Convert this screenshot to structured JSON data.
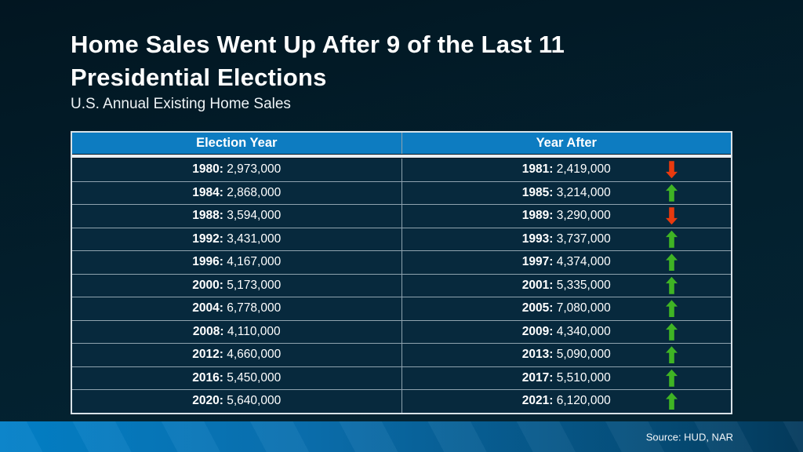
{
  "page": {
    "title_line1": "Home Sales Went Up After 9 of the Last 11",
    "title_line2": "Presidential Elections",
    "subtitle": "U.S. Annual Existing Home Sales",
    "source": "Source: HUD, NAR"
  },
  "colors": {
    "background_top": "#021621",
    "background_bottom": "#042534",
    "header_blue": "#0d7cc1",
    "row_bg": "#07293d",
    "row_border": "#8fa3af",
    "outer_border": "#d8e2e8",
    "separator_white": "#e8eef2",
    "up_green": "#3fb424",
    "down_red": "#e83a0e",
    "footer_blue_left": "#0280c8",
    "footer_blue_right": "#043a5c"
  },
  "chart_data": {
    "type": "table",
    "title": "Home Sales Went Up After 9 of the Last 11 Presidential Elections",
    "subtitle": "U.S. Annual Existing Home Sales",
    "columns": [
      "Election Year",
      "Year After"
    ],
    "rows": [
      {
        "election_year": "1980",
        "election_year_sales": "2,973,000",
        "year_after": "1981",
        "year_after_sales": "2,419,000",
        "direction": "down"
      },
      {
        "election_year": "1984",
        "election_year_sales": "2,868,000",
        "year_after": "1985",
        "year_after_sales": "3,214,000",
        "direction": "up"
      },
      {
        "election_year": "1988",
        "election_year_sales": "3,594,000",
        "year_after": "1989",
        "year_after_sales": "3,290,000",
        "direction": "down"
      },
      {
        "election_year": "1992",
        "election_year_sales": "3,431,000",
        "year_after": "1993",
        "year_after_sales": "3,737,000",
        "direction": "up"
      },
      {
        "election_year": "1996",
        "election_year_sales": "4,167,000",
        "year_after": "1997",
        "year_after_sales": "4,374,000",
        "direction": "up"
      },
      {
        "election_year": "2000",
        "election_year_sales": "5,173,000",
        "year_after": "2001",
        "year_after_sales": "5,335,000",
        "direction": "up"
      },
      {
        "election_year": "2004",
        "election_year_sales": "6,778,000",
        "year_after": "2005",
        "year_after_sales": "7,080,000",
        "direction": "up"
      },
      {
        "election_year": "2008",
        "election_year_sales": "4,110,000",
        "year_after": "2009",
        "year_after_sales": "4,340,000",
        "direction": "up"
      },
      {
        "election_year": "2012",
        "election_year_sales": "4,660,000",
        "year_after": "2013",
        "year_after_sales": "5,090,000",
        "direction": "up"
      },
      {
        "election_year": "2016",
        "election_year_sales": "5,450,000",
        "year_after": "2017",
        "year_after_sales": "5,510,000",
        "direction": "up"
      },
      {
        "election_year": "2020",
        "election_year_sales": "5,640,000",
        "year_after": "2021",
        "year_after_sales": "6,120,000",
        "direction": "up"
      }
    ],
    "source": "Source: HUD, NAR"
  }
}
